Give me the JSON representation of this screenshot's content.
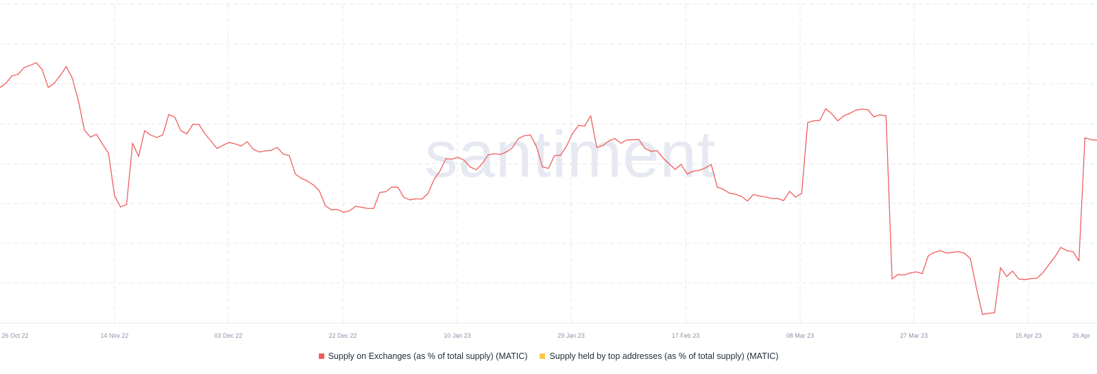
{
  "watermark": "santiment",
  "colors": {
    "exchanges": "#f05b5b",
    "top_addresses": "#ffcb47",
    "grid": "#e4e7ee",
    "tick_text": "#8a93a6",
    "watermark": "#e6e8f2"
  },
  "legend": {
    "items": [
      {
        "label": "Supply on Exchanges (as % of total supply) (MATIC)",
        "color": "#f05b5b"
      },
      {
        "label": "Supply held by top addresses (as % of total supply) (MATIC)",
        "color": "#ffcb47"
      }
    ]
  },
  "chart_data": {
    "type": "line",
    "title": "",
    "xlabel": "",
    "ylabel": "",
    "x_ticks": [
      "26 Oct 22",
      "14 Nov 22",
      "03 Dec 22",
      "22 Dec 22",
      "10 Jan 23",
      "29 Jan 23",
      "17 Feb 23",
      "08 Mar 23",
      "27 Mar 23",
      "15 Apr 23",
      "26 Apr"
    ],
    "y_ticks_visible": false,
    "ylim": [
      0,
      9
    ],
    "grid": true,
    "legend_position": "bottom-center",
    "series": [
      {
        "name": "Supply on Exchanges (as % of total supply) (MATIC)",
        "x_range": [
          "2022-10-26",
          "2023-04-26"
        ],
        "values": [
          6.65,
          6.77,
          6.98,
          7.02,
          7.21,
          7.27,
          7.35,
          7.15,
          6.65,
          6.77,
          6.99,
          7.24,
          6.91,
          6.28,
          5.45,
          5.25,
          5.33,
          5.05,
          4.8,
          3.6,
          3.28,
          3.35,
          5.08,
          4.7,
          5.43,
          5.31,
          5.24,
          5.31,
          5.89,
          5.81,
          5.43,
          5.34,
          5.61,
          5.61,
          5.34,
          5.14,
          4.93,
          5.02,
          5.1,
          5.06,
          5.0,
          5.12,
          4.91,
          4.83,
          4.86,
          4.88,
          4.96,
          4.77,
          4.73,
          4.21,
          4.09,
          4.01,
          3.9,
          3.73,
          3.31,
          3.2,
          3.21,
          3.13,
          3.17,
          3.3,
          3.27,
          3.24,
          3.24,
          3.69,
          3.71,
          3.84,
          3.84,
          3.55,
          3.48,
          3.51,
          3.5,
          3.66,
          4.05,
          4.3,
          4.64,
          4.63,
          4.68,
          4.6,
          4.41,
          4.33,
          4.5,
          4.75,
          4.78,
          4.76,
          4.83,
          4.95,
          5.21,
          5.29,
          5.31,
          4.99,
          4.41,
          4.37,
          4.73,
          4.74,
          5.0,
          5.36,
          5.58,
          5.56,
          5.85,
          4.96,
          5.01,
          5.14,
          5.21,
          5.08,
          5.17,
          5.18,
          5.18,
          4.93,
          4.85,
          4.87,
          4.66,
          4.5,
          4.34,
          4.48,
          4.21,
          4.29,
          4.31,
          4.38,
          4.48,
          3.84,
          3.78,
          3.67,
          3.64,
          3.58,
          3.45,
          3.63,
          3.59,
          3.56,
          3.52,
          3.52,
          3.46,
          3.72,
          3.56,
          3.66,
          5.66,
          5.71,
          5.72,
          6.05,
          5.91,
          5.71,
          5.85,
          5.92,
          6.01,
          6.04,
          6.02,
          5.82,
          5.88,
          5.85,
          1.25,
          1.38,
          1.36,
          1.42,
          1.45,
          1.4,
          1.9,
          2.0,
          2.05,
          1.98,
          2.0,
          2.02,
          1.98,
          1.82,
          0.99,
          0.25,
          0.28,
          0.3,
          1.57,
          1.32,
          1.47,
          1.25,
          1.23,
          1.26,
          1.27,
          1.42,
          1.65,
          1.87,
          2.14,
          2.05,
          2.02,
          1.76,
          5.23,
          5.18,
          5.16
        ]
      }
    ]
  }
}
